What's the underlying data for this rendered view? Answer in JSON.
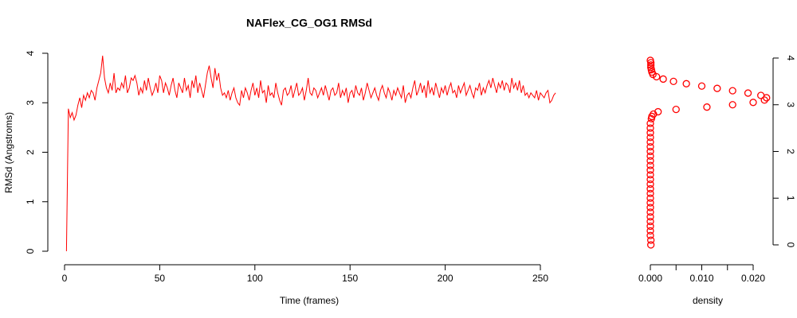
{
  "chart_data": [
    {
      "type": "line",
      "title": "NAFlex_CG_OG1 RMSd",
      "xlabel": "Time (frames)",
      "ylabel": "RMSd (Angstroms)",
      "xlim": [
        0,
        250
      ],
      "xticks": [
        0,
        50,
        100,
        150,
        200,
        250
      ],
      "ylim": [
        0,
        4
      ],
      "yticks": [
        0,
        1,
        2,
        3,
        4
      ],
      "series": [
        {
          "color": "#ff0000",
          "x": [
            1,
            2,
            3,
            4,
            5,
            6,
            7,
            8,
            9,
            10,
            11,
            12,
            13,
            14,
            15,
            16,
            17,
            18,
            19,
            20,
            21,
            22,
            23,
            24,
            25,
            26,
            27,
            28,
            29,
            30,
            31,
            32,
            33,
            34,
            35,
            36,
            37,
            38,
            39,
            40,
            41,
            42,
            43,
            44,
            45,
            46,
            47,
            48,
            49,
            50,
            51,
            52,
            53,
            54,
            55,
            56,
            57,
            58,
            59,
            60,
            61,
            62,
            63,
            64,
            65,
            66,
            67,
            68,
            69,
            70,
            71,
            72,
            73,
            74,
            75,
            76,
            77,
            78,
            79,
            80,
            81,
            82,
            83,
            84,
            85,
            86,
            87,
            88,
            89,
            90,
            91,
            92,
            93,
            94,
            95,
            96,
            97,
            98,
            99,
            100,
            101,
            102,
            103,
            104,
            105,
            106,
            107,
            108,
            109,
            110,
            111,
            112,
            113,
            114,
            115,
            116,
            117,
            118,
            119,
            120,
            121,
            122,
            123,
            124,
            125,
            126,
            127,
            128,
            129,
            130,
            131,
            132,
            133,
            134,
            135,
            136,
            137,
            138,
            139,
            140,
            141,
            142,
            143,
            144,
            145,
            146,
            147,
            148,
            149,
            150,
            151,
            152,
            153,
            154,
            155,
            156,
            157,
            158,
            159,
            160,
            161,
            162,
            163,
            164,
            165,
            166,
            167,
            168,
            169,
            170,
            171,
            172,
            173,
            174,
            175,
            176,
            177,
            178,
            179,
            180,
            181,
            182,
            183,
            184,
            185,
            186,
            187,
            188,
            189,
            190,
            191,
            192,
            193,
            194,
            195,
            196,
            197,
            198,
            199,
            200,
            201,
            202,
            203,
            204,
            205,
            206,
            207,
            208,
            209,
            210,
            211,
            212,
            213,
            214,
            215,
            216,
            217,
            218,
            219,
            220,
            221,
            222,
            223,
            224,
            225,
            226,
            227,
            228,
            229,
            230,
            231,
            232,
            233,
            234,
            235,
            236,
            237,
            238,
            239,
            240,
            241,
            242,
            243,
            244,
            245,
            246,
            247,
            248,
            249,
            250,
            251,
            252,
            253,
            254,
            255,
            256,
            257,
            258
          ],
          "values": [
            0,
            2.88,
            2.7,
            2.8,
            2.65,
            2.75,
            2.95,
            3.1,
            2.9,
            3.15,
            3.05,
            3.2,
            3.1,
            3.25,
            3.2,
            3.05,
            3.3,
            3.45,
            3.6,
            3.95,
            3.5,
            3.3,
            3.2,
            3.4,
            3.25,
            3.6,
            3.2,
            3.3,
            3.25,
            3.4,
            3.3,
            3.55,
            3.2,
            3.3,
            3.5,
            3.45,
            3.55,
            3.4,
            3.15,
            3.3,
            3.2,
            3.45,
            3.25,
            3.5,
            3.3,
            3.15,
            3.25,
            3.4,
            3.2,
            3.55,
            3.45,
            3.2,
            3.4,
            3.3,
            3.15,
            3.35,
            3.5,
            3.25,
            3.1,
            3.4,
            3.3,
            3.2,
            3.5,
            3.25,
            3.35,
            3.1,
            3.45,
            3.3,
            3.55,
            3.2,
            3.4,
            3.25,
            3.1,
            3.35,
            3.6,
            3.75,
            3.5,
            3.3,
            3.7,
            3.45,
            3.6,
            3.3,
            3.15,
            3.2,
            3.1,
            3.25,
            3.05,
            3.2,
            3.3,
            3.1,
            3.0,
            2.95,
            3.25,
            3.1,
            3.3,
            3.2,
            3.05,
            3.25,
            3.4,
            3.15,
            3.3,
            3.1,
            3.45,
            3.2,
            3.25,
            3.0,
            3.35,
            3.15,
            3.2,
            3.1,
            3.4,
            3.2,
            3.05,
            2.95,
            3.25,
            3.3,
            3.15,
            3.2,
            3.35,
            3.1,
            3.25,
            3.4,
            3.15,
            3.2,
            3.3,
            3.05,
            3.25,
            3.5,
            3.2,
            3.15,
            3.3,
            3.25,
            3.1,
            3.2,
            3.3,
            3.15,
            3.35,
            3.2,
            3.05,
            3.25,
            3.3,
            3.15,
            3.2,
            3.4,
            3.1,
            3.25,
            3.15,
            3.3,
            3.0,
            3.2,
            3.25,
            3.1,
            3.35,
            3.2,
            3.15,
            3.3,
            3.05,
            3.2,
            3.4,
            3.25,
            3.1,
            3.2,
            3.3,
            3.15,
            3.05,
            3.25,
            3.35,
            3.2,
            3.1,
            3.3,
            3.2,
            3.05,
            3.25,
            3.15,
            3.3,
            3.2,
            3.1,
            3.35,
            3.0,
            3.15,
            3.2,
            3.1,
            3.3,
            3.45,
            3.15,
            3.25,
            3.4,
            3.2,
            3.35,
            3.1,
            3.45,
            3.2,
            3.3,
            3.15,
            3.4,
            3.25,
            3.1,
            3.3,
            3.2,
            3.35,
            3.15,
            3.3,
            3.4,
            3.2,
            3.25,
            3.1,
            3.35,
            3.2,
            3.3,
            3.4,
            3.15,
            3.25,
            3.35,
            3.2,
            3.1,
            3.3,
            3.25,
            3.4,
            3.15,
            3.3,
            3.2,
            3.35,
            3.45,
            3.3,
            3.5,
            3.35,
            3.2,
            3.4,
            3.3,
            3.45,
            3.25,
            3.4,
            3.35,
            3.2,
            3.5,
            3.3,
            3.4,
            3.25,
            3.45,
            3.2,
            3.35,
            3.15,
            3.2,
            3.1,
            3.2,
            3.15,
            3.1,
            3.25,
            3.05,
            3.2,
            3.15,
            3.1,
            3.2,
            3.25,
            3.0,
            3.05,
            3.15,
            3.2
          ]
        }
      ]
    },
    {
      "type": "scatter",
      "xlabel": "density",
      "xlim": [
        0,
        0.02
      ],
      "xticks": [
        {
          "value": 0,
          "label": "0.000"
        },
        {
          "value": 0.01,
          "label": "0.010"
        },
        {
          "value": 0.02,
          "label": "0.020"
        }
      ],
      "minor_xticks": [
        0.005,
        0.015
      ],
      "ylim": [
        0,
        4
      ],
      "yticks": [
        0,
        1,
        2,
        3,
        4
      ],
      "series": [
        {
          "color": "#ff0000",
          "x": [
            0.0001,
            0.0001,
            0,
            0,
            0,
            0,
            0,
            0,
            0,
            0,
            0,
            0,
            0,
            0,
            0,
            0,
            0,
            0,
            0,
            0,
            0,
            0,
            0,
            0,
            0,
            0,
            0,
            0.0002,
            0.0003,
            0.0006,
            0.0015,
            0.005,
            0.011,
            0.016,
            0.02,
            0.0222,
            0.0226,
            0.0215,
            0.019,
            0.016,
            0.013,
            0.01,
            0.007,
            0.0045,
            0.0025,
            0.0012,
            0.0005,
            0.0003,
            0.0002,
            0.0001,
            0.0001,
            0.0001,
            0
          ],
          "values": [
            0,
            0.1,
            0.2,
            0.3,
            0.4,
            0.5,
            0.6,
            0.7,
            0.8,
            0.9,
            1.0,
            1.1,
            1.2,
            1.3,
            1.4,
            1.5,
            1.6,
            1.7,
            1.8,
            1.9,
            2.0,
            2.1,
            2.2,
            2.3,
            2.4,
            2.5,
            2.6,
            2.7,
            2.75,
            2.8,
            2.85,
            2.9,
            2.95,
            3.0,
            3.05,
            3.1,
            3.15,
            3.2,
            3.25,
            3.3,
            3.35,
            3.4,
            3.45,
            3.5,
            3.55,
            3.6,
            3.65,
            3.7,
            3.75,
            3.8,
            3.85,
            3.9,
            3.95
          ]
        }
      ]
    }
  ]
}
